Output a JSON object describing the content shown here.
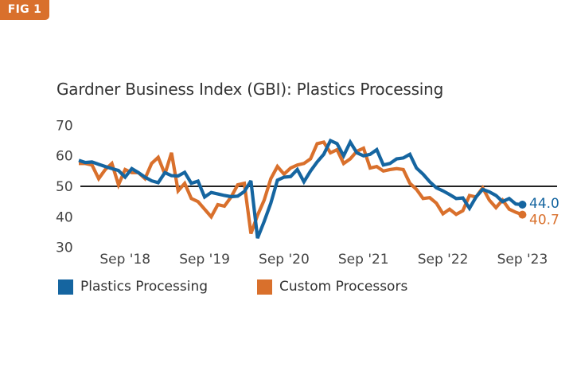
{
  "badge": {
    "label": "FIG 1"
  },
  "colors": {
    "badge": "#d9702c",
    "plastics": "#1565a0",
    "custom": "#d9702c",
    "reference": "#222222"
  },
  "chart_data": {
    "type": "line",
    "title": "Gardner Business Index (GBI): Plastics Processing",
    "xlabel": "",
    "ylabel": "",
    "ylim": [
      30,
      70
    ],
    "yticks": [
      70,
      60,
      50,
      40,
      30
    ],
    "reference_line": 50,
    "grid": false,
    "legend_position": "bottom-left",
    "x_start": "Feb 2018",
    "x_end": "Sep 2023",
    "frequency": "monthly",
    "xtick_labels": [
      {
        "label": "Sep '18",
        "index": 7
      },
      {
        "label": "Sep '19",
        "index": 19
      },
      {
        "label": "Sep '20",
        "index": 31
      },
      {
        "label": "Sep '21",
        "index": 43
      },
      {
        "label": "Sep '22",
        "index": 55
      },
      {
        "label": "Sep '23",
        "index": 67
      }
    ],
    "series": [
      {
        "name": "Plastics Processing",
        "color": "#1565a0",
        "end_label": "44.0",
        "values": [
          58.5,
          57.8,
          58.0,
          57.2,
          56.5,
          55.8,
          55.2,
          53.0,
          55.8,
          54.5,
          53.0,
          51.8,
          51.2,
          54.5,
          53.5,
          53.4,
          54.6,
          51.0,
          51.7,
          46.5,
          48.0,
          47.5,
          47.0,
          46.6,
          46.8,
          48.3,
          51.8,
          33.0,
          38.5,
          44.5,
          52.0,
          53.0,
          53.2,
          55.5,
          51.5,
          55.0,
          58.0,
          60.5,
          65.0,
          64.0,
          60.0,
          64.5,
          61.0,
          60.0,
          60.5,
          62.0,
          57.0,
          57.5,
          59.0,
          59.3,
          60.5,
          56.0,
          54.0,
          51.5,
          49.5,
          48.5,
          47.3,
          46.0,
          46.2,
          42.8,
          46.5,
          49.0,
          48.2,
          47.0,
          45.0,
          46.0,
          44.2,
          44.0
        ]
      },
      {
        "name": "Custom Processors",
        "color": "#d9702c",
        "end_label": "40.7",
        "values": [
          57.5,
          57.5,
          57.0,
          52.5,
          55.5,
          57.5,
          50.5,
          55.5,
          54.5,
          54.5,
          52.5,
          57.5,
          59.5,
          54.0,
          61.0,
          48.5,
          51.0,
          46.0,
          45.0,
          42.5,
          40.0,
          44.0,
          43.5,
          46.5,
          50.5,
          51.0,
          34.5,
          40.5,
          45.5,
          52.5,
          56.5,
          54.0,
          56.0,
          57.0,
          57.5,
          59.0,
          64.0,
          64.5,
          61.0,
          62.0,
          57.5,
          59.0,
          61.5,
          62.5,
          56.0,
          56.5,
          55.0,
          55.5,
          55.8,
          55.5,
          51.0,
          49.0,
          46.0,
          46.3,
          44.5,
          41.0,
          42.5,
          40.8,
          42.0,
          47.0,
          46.5,
          49.5,
          45.5,
          43.0,
          45.5,
          42.5,
          41.5,
          40.7
        ]
      }
    ]
  },
  "legend": [
    {
      "label": "Plastics Processing",
      "color": "#1565a0"
    },
    {
      "label": "Custom Processors",
      "color": "#d9702c"
    }
  ]
}
